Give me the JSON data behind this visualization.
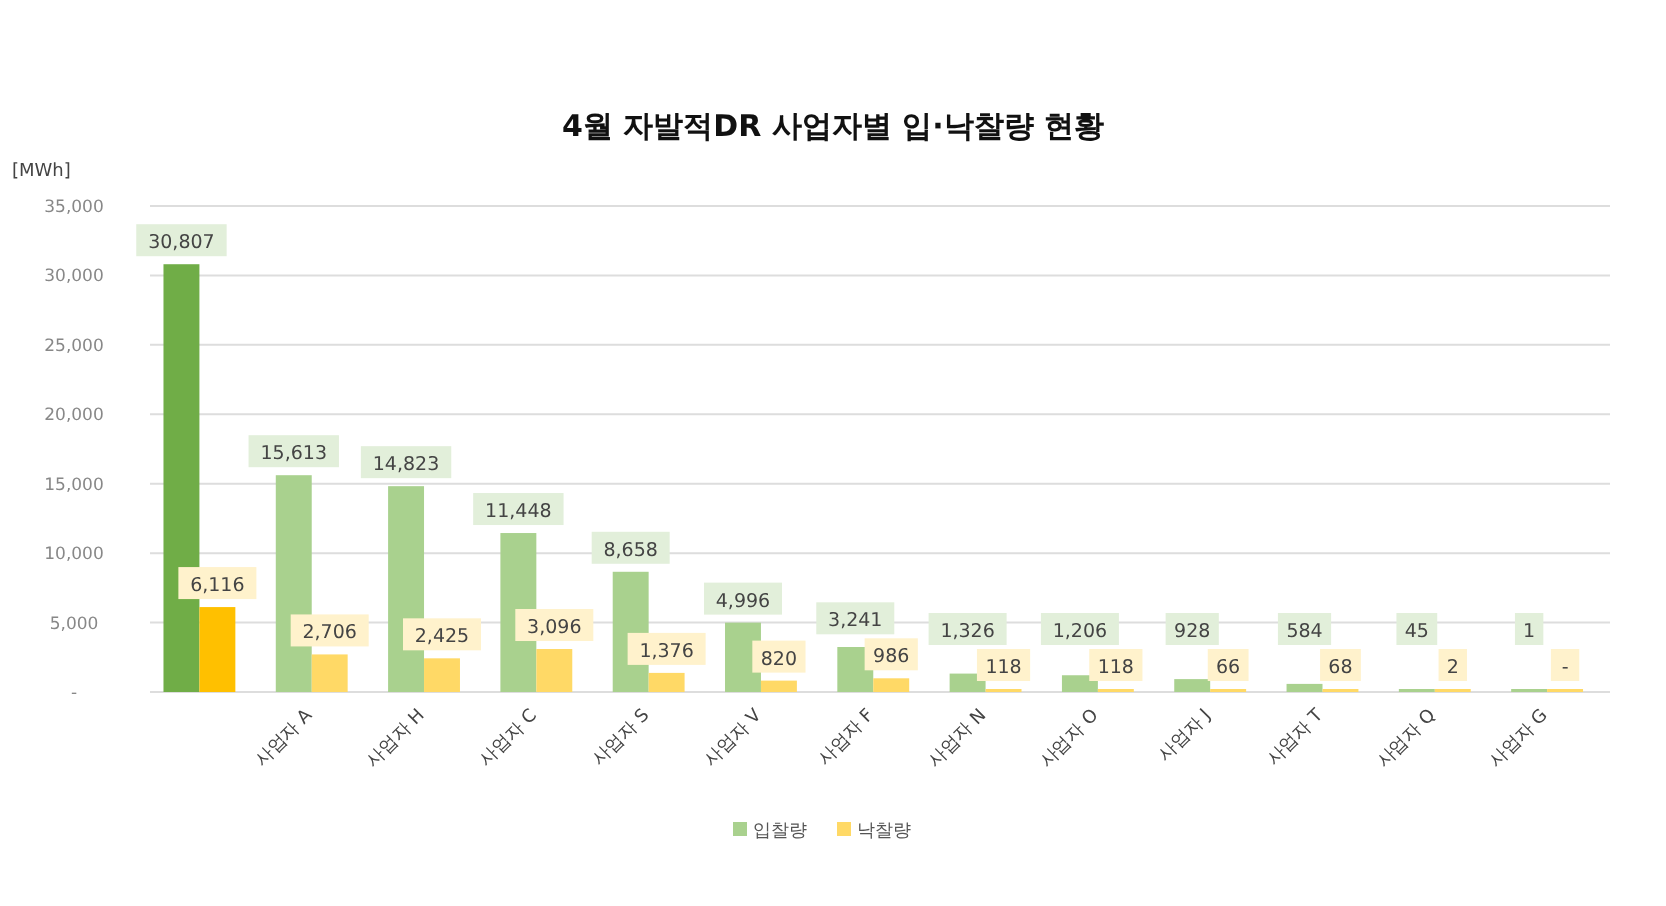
{
  "chart_data": {
    "type": "bar",
    "title": "4월 자발적DR 사업자별 입·낙찰량 현황",
    "ylabel": "[MWh]",
    "categories": [
      null,
      "사업자 A",
      "사업자 H",
      "사업자 C",
      "사업자 S",
      "사업자 V",
      "사업자 F",
      "사업자 N",
      "사업자 O",
      "사업자 J",
      "사업자 T",
      "사업자 Q",
      "사업자 G"
    ],
    "series": [
      {
        "name": "입찰량",
        "color": "#a9d18e",
        "colors": [
          "#70ad47",
          "#a9d18e",
          "#a9d18e",
          "#a9d18e",
          "#a9d18e",
          "#a9d18e",
          "#a9d18e",
          "#a9d18e",
          "#a9d18e",
          "#a9d18e",
          "#a9d18e",
          "#a9d18e",
          "#a9d18e"
        ],
        "values": [
          30807,
          15613,
          14823,
          11448,
          8658,
          4996,
          3241,
          1326,
          1206,
          928,
          584,
          45,
          1
        ],
        "value_labels": [
          "30,807",
          "15,613",
          "14,823",
          "11,448",
          "8,658",
          "4,996",
          "3,241",
          "1,326",
          "1,206",
          "928",
          "584",
          "45",
          "1"
        ]
      },
      {
        "name": "낙찰량",
        "color": "#ffd966",
        "colors": [
          "#ffc000",
          "#ffd966",
          "#ffd966",
          "#ffd966",
          "#ffd966",
          "#ffd966",
          "#ffd966",
          "#ffd966",
          "#ffd966",
          "#ffd966",
          "#ffd966",
          "#ffd966",
          "#ffd966"
        ],
        "values": [
          6116,
          2706,
          2425,
          3096,
          1376,
          820,
          986,
          118,
          118,
          66,
          68,
          2,
          0
        ],
        "value_labels": [
          "6,116",
          "2,706",
          "2,425",
          "3,096",
          "1,376",
          "820",
          "986",
          "118",
          "118",
          "66",
          "68",
          "2",
          "-"
        ]
      }
    ],
    "ylim": [
      0,
      35000
    ],
    "yticks": [
      {
        "value": 0,
        "label": "-"
      },
      {
        "value": 5000,
        "label": "5,000"
      },
      {
        "value": 10000,
        "label": "10,000"
      },
      {
        "value": 15000,
        "label": "15,000"
      },
      {
        "value": 20000,
        "label": "20,000"
      },
      {
        "value": 25000,
        "label": "25,000"
      },
      {
        "value": 30000,
        "label": "30,000"
      },
      {
        "value": 35000,
        "label": "35,000"
      }
    ],
    "grid": "y",
    "legend": "bottom"
  }
}
